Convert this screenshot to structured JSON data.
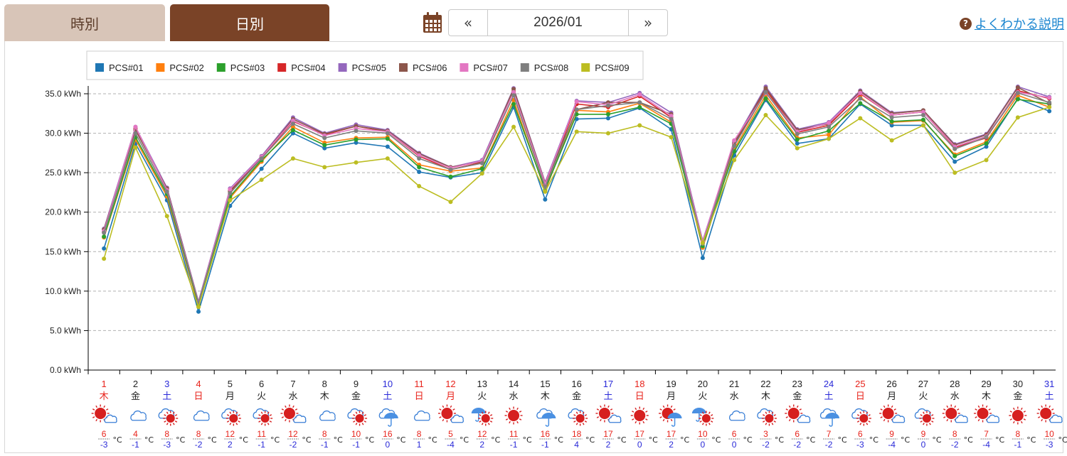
{
  "tabs": [
    {
      "label": "時別",
      "active": false
    },
    {
      "label": "日別",
      "active": true
    }
  ],
  "navigation": {
    "calendar_icon": "calendar-icon",
    "prev_label": "«",
    "current": "2026/01",
    "next_label": "»"
  },
  "help": {
    "icon": "question-circle-icon",
    "label": "よくわかる説明"
  },
  "colors": {
    "tab_active": "#7a4327",
    "tab_inactive": "#d8c5b8",
    "weekday_red": "#e8231b",
    "weekday_blue": "#2a2ad8",
    "link": "#1c86d0"
  },
  "chart_data": {
    "type": "line",
    "unit": "kWh",
    "ylim": [
      0,
      35
    ],
    "yticks": [
      "0.0 kWh",
      "5.0 kWh",
      "10.0 kWh",
      "15.0 kWh",
      "20.0 kWh",
      "25.0 kWh",
      "30.0 kWh",
      "35.0 kWh"
    ],
    "grid": true,
    "legend_position": "top-left",
    "x": [
      "1",
      "2",
      "3",
      "4",
      "5",
      "6",
      "7",
      "8",
      "9",
      "10",
      "11",
      "12",
      "13",
      "14",
      "15",
      "16",
      "17",
      "18",
      "19",
      "20",
      "21",
      "22",
      "23",
      "24",
      "25",
      "26",
      "27",
      "28",
      "29",
      "30",
      "31"
    ],
    "series": [
      {
        "name": "PCS#01",
        "color": "#1f77b4",
        "values": [
          15.4,
          28.7,
          21.5,
          7.4,
          20.8,
          25.5,
          30.0,
          28.1,
          28.8,
          28.3,
          25.1,
          24.4,
          25.0,
          33.3,
          21.6,
          31.8,
          31.9,
          33.2,
          30.5,
          14.2,
          27.2,
          34.2,
          28.7,
          29.3,
          33.7,
          31.0,
          31.0,
          26.4,
          28.3,
          34.4,
          32.8
        ]
      },
      {
        "name": "PCS#02",
        "color": "#ff7f0e",
        "values": [
          16.8,
          29.2,
          22.0,
          8.1,
          21.8,
          26.4,
          30.8,
          28.8,
          29.4,
          29.5,
          26.0,
          25.2,
          25.6,
          34.2,
          22.7,
          32.9,
          32.7,
          33.8,
          31.4,
          15.5,
          28.0,
          34.8,
          29.4,
          29.8,
          34.6,
          31.4,
          31.6,
          27.3,
          28.9,
          34.8,
          33.3
        ]
      },
      {
        "name": "PCS#03",
        "color": "#2ca02c",
        "values": [
          16.9,
          29.5,
          22.3,
          8.3,
          22.0,
          26.6,
          30.4,
          28.5,
          29.2,
          29.3,
          25.7,
          24.5,
          25.5,
          33.7,
          22.9,
          32.4,
          32.4,
          33.3,
          31.2,
          15.7,
          27.7,
          34.4,
          29.2,
          30.3,
          33.8,
          31.5,
          31.7,
          27.1,
          28.7,
          34.3,
          33.7
        ]
      },
      {
        "name": "PCS#04",
        "color": "#d62728",
        "values": [
          17.5,
          30.6,
          22.9,
          8.6,
          22.6,
          26.9,
          31.5,
          29.8,
          30.9,
          30.2,
          27.1,
          25.4,
          26.3,
          35.3,
          23.5,
          33.7,
          33.3,
          34.7,
          32.0,
          16.1,
          28.6,
          35.5,
          30.1,
          31.0,
          35.0,
          32.3,
          32.7,
          28.2,
          29.4,
          35.4,
          34.4
        ]
      },
      {
        "name": "PCS#05",
        "color": "#9467bd",
        "values": [
          17.9,
          30.8,
          23.1,
          8.7,
          23.0,
          27.1,
          32.0,
          30.0,
          31.1,
          30.4,
          27.5,
          25.7,
          26.6,
          35.7,
          23.8,
          34.1,
          33.9,
          35.1,
          32.6,
          16.4,
          28.9,
          35.9,
          30.5,
          31.4,
          35.4,
          32.6,
          32.9,
          28.6,
          29.9,
          35.9,
          34.6
        ]
      },
      {
        "name": "PCS#06",
        "color": "#8c564b",
        "values": [
          17.8,
          30.4,
          23.0,
          8.6,
          22.7,
          27.0,
          31.8,
          29.9,
          30.9,
          30.3,
          27.4,
          25.7,
          26.4,
          35.6,
          23.7,
          33.0,
          33.9,
          33.9,
          32.4,
          16.2,
          28.7,
          35.7,
          30.4,
          31.2,
          35.3,
          32.5,
          32.9,
          28.5,
          29.8,
          35.8,
          33.8
        ]
      },
      {
        "name": "PCS#07",
        "color": "#e377c2",
        "values": [
          17.6,
          30.8,
          22.8,
          8.6,
          22.9,
          27.0,
          31.6,
          29.7,
          30.6,
          30.2,
          27.2,
          25.6,
          26.5,
          35.2,
          23.6,
          34.0,
          33.6,
          34.9,
          32.2,
          16.3,
          29.1,
          35.1,
          30.2,
          31.3,
          35.1,
          32.3,
          32.7,
          28.3,
          29.6,
          35.2,
          34.5
        ]
      },
      {
        "name": "PCS#08",
        "color": "#7f7f7f",
        "values": [
          17.4,
          30.0,
          22.6,
          8.5,
          22.4,
          26.8,
          31.2,
          29.4,
          30.3,
          30.0,
          26.8,
          25.4,
          26.2,
          34.8,
          23.2,
          33.0,
          33.5,
          33.9,
          31.8,
          16.0,
          28.4,
          35.2,
          29.9,
          30.8,
          34.4,
          32.0,
          32.3,
          28.0,
          29.5,
          35.1,
          33.9
        ]
      },
      {
        "name": "PCS#09",
        "color": "#bcbd22",
        "values": [
          14.1,
          28.2,
          19.5,
          8.0,
          21.5,
          24.1,
          26.8,
          25.7,
          26.3,
          26.8,
          23.3,
          21.3,
          24.9,
          30.8,
          22.6,
          30.2,
          30.0,
          31.0,
          29.5,
          16.1,
          26.6,
          32.3,
          28.1,
          29.3,
          31.9,
          29.1,
          31.0,
          25.0,
          26.6,
          32.0,
          33.3
        ]
      }
    ]
  },
  "days": [
    {
      "day": "1",
      "weekday": "木",
      "color": "red",
      "weather": "sunny-to-cloudy",
      "high": "6",
      "low": "-3"
    },
    {
      "day": "2",
      "weekday": "金",
      "color": "black",
      "weather": "cloudy",
      "high": "4",
      "low": "-1"
    },
    {
      "day": "3",
      "weekday": "土",
      "color": "blue",
      "weather": "cloudy-to-sunny",
      "high": "8",
      "low": "-3"
    },
    {
      "day": "4",
      "weekday": "日",
      "color": "red",
      "weather": "cloudy",
      "high": "8",
      "low": "-2"
    },
    {
      "day": "5",
      "weekday": "月",
      "color": "black",
      "weather": "cloudy-to-sunny",
      "high": "12",
      "low": "2"
    },
    {
      "day": "6",
      "weekday": "火",
      "color": "black",
      "weather": "cloudy-to-sunny",
      "high": "11",
      "low": "-1"
    },
    {
      "day": "7",
      "weekday": "水",
      "color": "black",
      "weather": "sunny-to-cloudy",
      "high": "12",
      "low": "-2"
    },
    {
      "day": "8",
      "weekday": "木",
      "color": "black",
      "weather": "cloudy",
      "high": "8",
      "low": "-1"
    },
    {
      "day": "9",
      "weekday": "金",
      "color": "black",
      "weather": "cloudy-to-sunny",
      "high": "10",
      "low": "-1"
    },
    {
      "day": "10",
      "weekday": "土",
      "color": "blue",
      "weather": "cloudy-to-rain",
      "high": "16",
      "low": "0"
    },
    {
      "day": "11",
      "weekday": "日",
      "color": "red",
      "weather": "cloudy",
      "high": "8",
      "low": "1"
    },
    {
      "day": "12",
      "weekday": "月",
      "color": "red",
      "weather": "sunny-to-cloudy",
      "high": "5",
      "low": "-4"
    },
    {
      "day": "13",
      "weekday": "火",
      "color": "black",
      "weather": "rain-to-sunny",
      "high": "12",
      "low": "2"
    },
    {
      "day": "14",
      "weekday": "水",
      "color": "black",
      "weather": "sunny",
      "high": "11",
      "low": "-1"
    },
    {
      "day": "15",
      "weekday": "木",
      "color": "black",
      "weather": "cloudy-to-rain",
      "high": "16",
      "low": "-1"
    },
    {
      "day": "16",
      "weekday": "金",
      "color": "black",
      "weather": "cloudy-to-sunny",
      "high": "18",
      "low": "4"
    },
    {
      "day": "17",
      "weekday": "土",
      "color": "blue",
      "weather": "sunny-to-cloudy",
      "high": "17",
      "low": "2"
    },
    {
      "day": "18",
      "weekday": "日",
      "color": "red",
      "weather": "sunny",
      "high": "17",
      "low": "0"
    },
    {
      "day": "19",
      "weekday": "月",
      "color": "black",
      "weather": "sunny-to-rain",
      "high": "17",
      "low": "2"
    },
    {
      "day": "20",
      "weekday": "火",
      "color": "black",
      "weather": "rain-to-sunny",
      "high": "10",
      "low": "0"
    },
    {
      "day": "21",
      "weekday": "水",
      "color": "black",
      "weather": "cloudy",
      "high": "6",
      "low": "0"
    },
    {
      "day": "22",
      "weekday": "木",
      "color": "black",
      "weather": "cloudy-to-sunny",
      "high": "3",
      "low": "-2"
    },
    {
      "day": "23",
      "weekday": "金",
      "color": "black",
      "weather": "sunny-to-cloudy",
      "high": "6",
      "low": "-2"
    },
    {
      "day": "24",
      "weekday": "土",
      "color": "blue",
      "weather": "cloudy-to-rain",
      "high": "7",
      "low": "-2"
    },
    {
      "day": "25",
      "weekday": "日",
      "color": "red",
      "weather": "cloudy-to-sunny",
      "high": "6",
      "low": "-3"
    },
    {
      "day": "26",
      "weekday": "月",
      "color": "black",
      "weather": "sunny-to-cloudy",
      "high": "9",
      "low": "-4"
    },
    {
      "day": "27",
      "weekday": "火",
      "color": "black",
      "weather": "cloudy-to-sunny",
      "high": "9",
      "low": "0"
    },
    {
      "day": "28",
      "weekday": "水",
      "color": "black",
      "weather": "sunny-to-cloudy",
      "high": "8",
      "low": "-2"
    },
    {
      "day": "29",
      "weekday": "木",
      "color": "black",
      "weather": "sunny-to-cloudy",
      "high": "7",
      "low": "-4"
    },
    {
      "day": "30",
      "weekday": "金",
      "color": "black",
      "weather": "sunny",
      "high": "8",
      "low": "-1"
    },
    {
      "day": "31",
      "weekday": "土",
      "color": "blue",
      "weather": "sunny-to-cloudy",
      "high": "10",
      "low": "-3"
    }
  ],
  "temp_unit": "°C"
}
